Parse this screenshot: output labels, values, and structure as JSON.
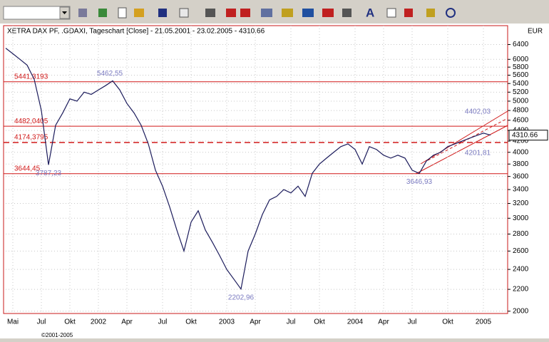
{
  "toolbar": {
    "font_button": "A"
  },
  "chart_data": {
    "type": "line",
    "title": "XETRA DAX PF, .GDAXI, Tageschart [Close] - 21.05.2001 - 23.02.2005 - 4310.66",
    "currency": "EUR",
    "footer": "©2001-2005",
    "color": "#1c1c5c",
    "log_scale": true,
    "grid": true,
    "categories": [
      null,
      "Mai",
      null,
      null,
      null,
      "Jul",
      null,
      null,
      null,
      "Okt",
      null,
      null,
      null,
      "2002",
      null,
      null,
      null,
      "Apr",
      null,
      null,
      null,
      null,
      "Jul",
      null,
      null,
      null,
      "Okt",
      null,
      null,
      null,
      null,
      "2003",
      null,
      null,
      null,
      "Apr",
      null,
      null,
      null,
      null,
      "Jul",
      null,
      null,
      null,
      "Okt",
      null,
      null,
      null,
      null,
      "2004",
      null,
      null,
      null,
      "Apr",
      null,
      null,
      null,
      "Jul",
      null,
      null,
      null,
      null,
      "Okt",
      null,
      null,
      null,
      null,
      "2005",
      null
    ],
    "values": [
      6300,
      6150,
      6000,
      5850,
      5500,
      4800,
      3787.23,
      4500,
      4750,
      5050,
      5000,
      5200,
      5150,
      5250,
      5350,
      5462.55,
      5250,
      4950,
      4750,
      4500,
      4150,
      3700,
      3450,
      3150,
      2850,
      2600,
      2950,
      3100,
      2850,
      2700,
      2550,
      2400,
      2300,
      2202.96,
      2600,
      2800,
      3050,
      3250,
      3300,
      3400,
      3350,
      3450,
      3300,
      3650,
      3800,
      3900,
      4000,
      4100,
      4150,
      4050,
      3800,
      4100,
      4050,
      3950,
      3900,
      3950,
      3900,
      3700,
      3646.93,
      3850,
      3950,
      4000,
      4100,
      4150,
      4200,
      4250,
      4300,
      4350,
      4310.66
    ],
    "value_labels": [
      null,
      null,
      null,
      null,
      null,
      null,
      "3787,23",
      null,
      null,
      null,
      null,
      null,
      null,
      null,
      null,
      "5462,55",
      null,
      null,
      null,
      null,
      null,
      null,
      null,
      null,
      null,
      null,
      null,
      null,
      null,
      null,
      null,
      null,
      null,
      "2202,96",
      null,
      null,
      null,
      null,
      null,
      null,
      null,
      null,
      null,
      null,
      null,
      null,
      null,
      null,
      null,
      null,
      null,
      null,
      null,
      null,
      null,
      null,
      null,
      null,
      "3646,93",
      null,
      null,
      null,
      null,
      null,
      null,
      null,
      null,
      null,
      null
    ],
    "levels": [
      {
        "value": 5441.3193,
        "label": "5441,3193",
        "style": "solid"
      },
      {
        "value": 4482.0405,
        "label": "4482,0405",
        "style": "solid"
      },
      {
        "value": 4174.3795,
        "label": "4174,3795",
        "style": "dashed"
      },
      {
        "value": 3644.45,
        "label": "3644,45",
        "style": "solid"
      }
    ],
    "level_color": "#d01818",
    "annotations": [
      {
        "value": 4402.03,
        "label": "4402,03"
      },
      {
        "value": 4201.81,
        "label": "4201,81"
      }
    ],
    "ylim": [
      1980,
      6950
    ],
    "yticks": [
      6400,
      6000,
      5800,
      5600,
      5400,
      5200,
      5000,
      4800,
      4600,
      4400,
      4200,
      4000,
      3800,
      3600,
      3400,
      3200,
      3000,
      2800,
      2600,
      2400,
      2200,
      2000
    ]
  }
}
